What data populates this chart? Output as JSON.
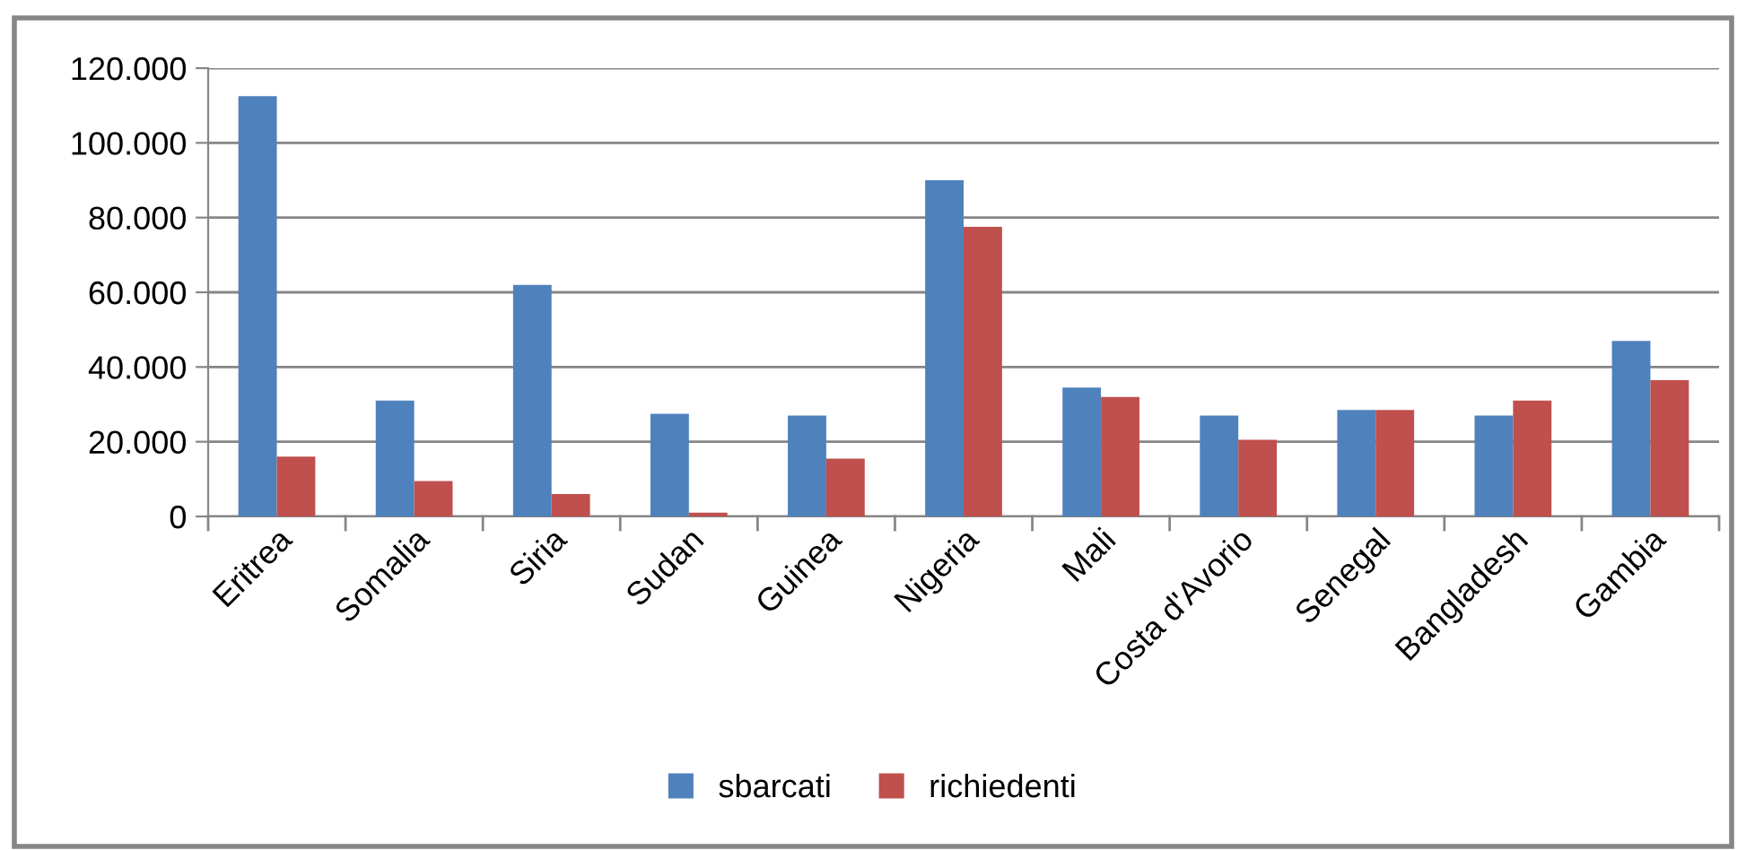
{
  "chart_data": {
    "type": "bar",
    "categories": [
      "Eritrea",
      "Somalia",
      "Siria",
      "Sudan",
      "Guinea",
      "Nigeria",
      "Mali",
      "Costa d'Avorio",
      "Senegal",
      "Bangladesh",
      "Gambia"
    ],
    "series": [
      {
        "name": "sbarcati",
        "color": "#4f81bd",
        "values": [
          112500,
          31000,
          62000,
          27500,
          27000,
          90000,
          34500,
          27000,
          28500,
          27000,
          47000
        ]
      },
      {
        "name": "richiedenti",
        "color": "#c0504d",
        "values": [
          16000,
          9500,
          6000,
          1000,
          15500,
          77500,
          32000,
          20500,
          28500,
          31000,
          36500
        ]
      }
    ],
    "ylim": [
      0,
      120000
    ],
    "yticks": [
      0,
      {
        "value": 20000,
        "label": "20.000"
      },
      {
        "value": 40000,
        "label": "40.000"
      },
      {
        "value": 60000,
        "label": "60.000"
      },
      {
        "value": 80000,
        "label": "80.000"
      },
      {
        "value": 100000,
        "label": "100.000"
      },
      {
        "value": 120000,
        "label": "120.000"
      }
    ],
    "grid": "y",
    "legend": "bottom"
  }
}
